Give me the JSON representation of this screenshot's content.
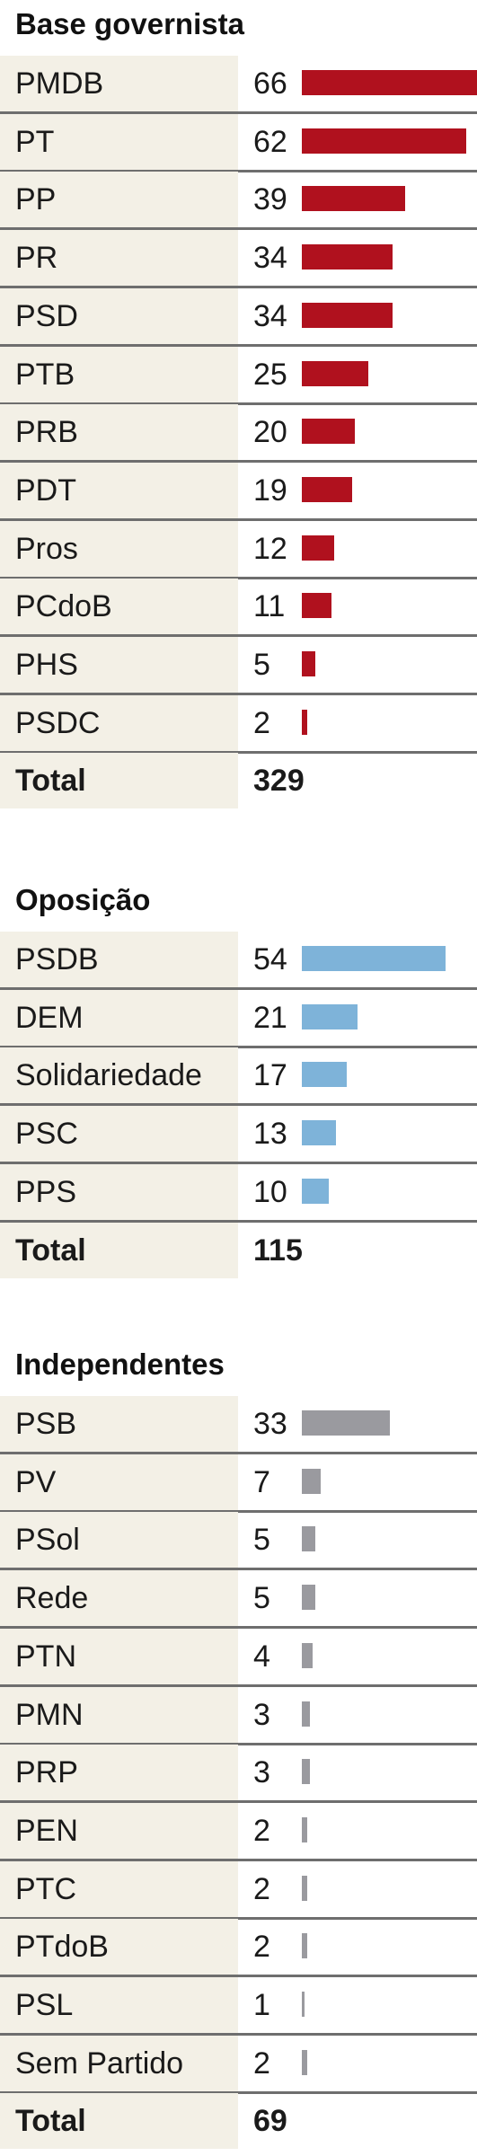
{
  "chart_data": [
    {
      "type": "bar",
      "title": "Base governista",
      "color": "#b0111e",
      "categories": [
        "PMDB",
        "PT",
        "PP",
        "PR",
        "PSD",
        "PTB",
        "PRB",
        "PDT",
        "Pros",
        "PCdoB",
        "PHS",
        "PSDC"
      ],
      "values": [
        66,
        62,
        39,
        34,
        34,
        25,
        20,
        19,
        12,
        11,
        5,
        2
      ],
      "total_label": "Total",
      "total": 329
    },
    {
      "type": "bar",
      "title": "Oposição",
      "color": "#7eb3d9",
      "categories": [
        "PSDB",
        "DEM",
        "Solidariedade",
        "PSC",
        "PPS"
      ],
      "values": [
        54,
        21,
        17,
        13,
        10
      ],
      "total_label": "Total",
      "total": 115
    },
    {
      "type": "bar",
      "title": "Independentes",
      "color": "#9a9a9f",
      "categories": [
        "PSB",
        "PV",
        "PSol",
        "Rede",
        "PTN",
        "PMN",
        "PRP",
        "PEN",
        "PTC",
        "PTdoB",
        "PSL",
        "Sem Partido"
      ],
      "values": [
        33,
        7,
        5,
        5,
        4,
        3,
        3,
        2,
        2,
        2,
        1,
        2
      ],
      "total_label": "Total",
      "total": 69
    }
  ]
}
